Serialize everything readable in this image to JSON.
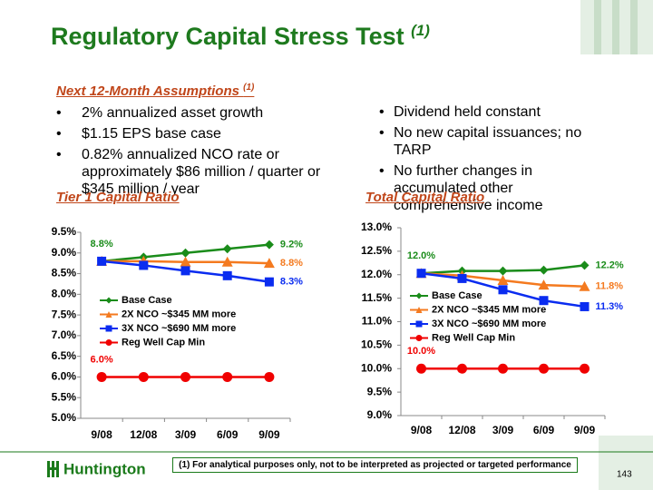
{
  "slide": {
    "title": "Regulatory Capital Stress Test",
    "title_note": "(1)",
    "assumptions_heading": "Next 12-Month Assumptions ",
    "assumptions_note": "(1)",
    "left_bullets": [
      "2% annualized asset growth",
      "$1.15 EPS base case",
      "0.82% annualized NCO rate or approximately  $86 million / quarter or $345 million / year"
    ],
    "right_bullets": [
      "Dividend held constant",
      "No new capital issuances; no TARP",
      "No further changes in accumulated other comprehensive income"
    ],
    "footnote": "(1)  For analytical purposes only, not to be interpreted as projected or targeted performance",
    "page_number": "143",
    "logo": "Huntington"
  },
  "chart_data": [
    {
      "type": "line",
      "title": "Tier 1 Capital Ratio",
      "categories": [
        "9/08",
        "12/08",
        "3/09",
        "6/09",
        "9/09"
      ],
      "ylim": [
        5,
        9.5
      ],
      "yticks": [
        {
          "value": 5,
          "label": "5.0%"
        },
        {
          "value": 5.5,
          "label": "5.5%"
        },
        {
          "value": 6,
          "label": "6.0%"
        },
        {
          "value": 6.5,
          "label": "6.5%"
        },
        {
          "value": 7,
          "label": "7.0%"
        },
        {
          "value": 7.5,
          "label": "7.5%"
        },
        {
          "value": 8,
          "label": "8.0%"
        },
        {
          "value": 8.5,
          "label": "8.5%"
        },
        {
          "value": 9,
          "label": "9.0%"
        },
        {
          "value": 9.5,
          "label": "9.5%"
        }
      ],
      "grid": false,
      "legend": "center-left",
      "series": [
        {
          "name": "Base Case",
          "color": "#1a8c1a",
          "marker": "diamond",
          "values": [
            8.8,
            8.9,
            9.0,
            9.1,
            9.2
          ],
          "value_labels": [
            "8.8%",
            null,
            null,
            null,
            "9.2%"
          ]
        },
        {
          "name": "2X NCO ~$345 MM more",
          "color": "#f47a1f",
          "marker": "triangle",
          "values": [
            8.8,
            8.8,
            8.78,
            8.78,
            8.75
          ],
          "value_labels": [
            null,
            null,
            null,
            null,
            "8.8%"
          ]
        },
        {
          "name": "3X NCO ~$690 MM more",
          "color": "#0a2cf0",
          "marker": "square",
          "values": [
            8.8,
            8.7,
            8.57,
            8.45,
            8.3
          ],
          "value_labels": [
            null,
            null,
            null,
            null,
            "8.3%"
          ]
        },
        {
          "name": "Reg Well Cap Min",
          "color": "#f00000",
          "marker": "circle",
          "values": [
            6,
            6,
            6,
            6,
            6
          ],
          "value_labels": [
            "6.0%",
            null,
            null,
            null,
            null
          ]
        }
      ]
    },
    {
      "type": "line",
      "title": "Total Capital Ratio",
      "categories": [
        "9/08",
        "12/08",
        "3/09",
        "6/09",
        "9/09"
      ],
      "ylim": [
        9,
        13
      ],
      "yticks": [
        {
          "value": 9,
          "label": "9.0%"
        },
        {
          "value": 9.5,
          "label": "9.5%"
        },
        {
          "value": 10,
          "label": "10.0%"
        },
        {
          "value": 10.5,
          "label": "10.5%"
        },
        {
          "value": 11,
          "label": "11.0%"
        },
        {
          "value": 11.5,
          "label": "11.5%"
        },
        {
          "value": 12,
          "label": "12.0%"
        },
        {
          "value": 12.5,
          "label": "12.5%"
        },
        {
          "value": 13,
          "label": "13.0%"
        }
      ],
      "grid": false,
      "legend": "center-left",
      "series": [
        {
          "name": "Base Case",
          "color": "#1a8c1a",
          "marker": "diamond",
          "values": [
            12.03,
            12.08,
            12.08,
            12.1,
            12.2
          ],
          "value_labels": [
            "12.0%",
            null,
            null,
            null,
            "12.2%"
          ]
        },
        {
          "name": "2X NCO ~$345 MM more",
          "color": "#f47a1f",
          "marker": "triangle",
          "values": [
            12.03,
            11.98,
            11.88,
            11.78,
            11.75
          ],
          "value_labels": [
            null,
            null,
            null,
            null,
            "11.8%"
          ]
        },
        {
          "name": "3X NCO ~$690 MM more",
          "color": "#0a2cf0",
          "marker": "square",
          "values": [
            12.03,
            11.92,
            11.68,
            11.45,
            11.32
          ],
          "value_labels": [
            null,
            null,
            null,
            null,
            "11.3%"
          ]
        },
        {
          "name": "Reg Well Cap Min",
          "color": "#f00000",
          "marker": "circle",
          "values": [
            10,
            10,
            10,
            10,
            10
          ],
          "value_labels": [
            "10.0%",
            null,
            null,
            null,
            null
          ]
        }
      ]
    }
  ]
}
